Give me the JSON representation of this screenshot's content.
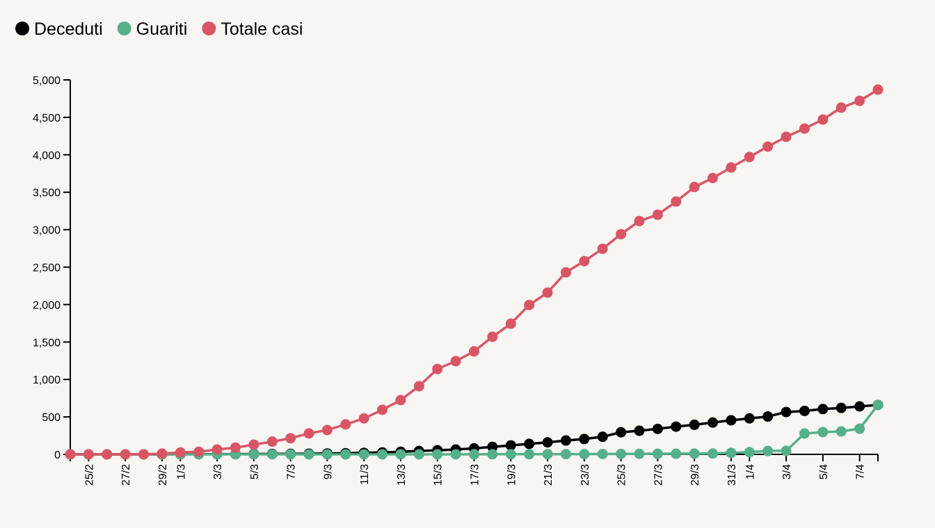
{
  "chart_data": {
    "type": "line",
    "title": "",
    "xlabel": "",
    "ylabel": "",
    "ylim": [
      0,
      5000
    ],
    "y_ticks": [
      0,
      500,
      1000,
      1500,
      2000,
      2500,
      3000,
      3500,
      4000,
      4500,
      5000
    ],
    "y_tick_labels": [
      "0",
      "500",
      "1,000",
      "1,500",
      "2,000",
      "2,500",
      "3,000",
      "3,500",
      "4,000",
      "4,500",
      "5,000"
    ],
    "legend_placement": "top-left",
    "x": [
      "24/2",
      "25/2",
      "26/2",
      "27/2",
      "28/2",
      "29/2",
      "1/3",
      "2/3",
      "3/3",
      "4/3",
      "5/3",
      "6/3",
      "7/3",
      "8/3",
      "9/3",
      "10/3",
      "11/3",
      "12/3",
      "13/3",
      "14/3",
      "15/3",
      "16/3",
      "17/3",
      "18/3",
      "19/3",
      "20/3",
      "21/3",
      "22/3",
      "23/3",
      "24/3",
      "25/3",
      "26/3",
      "27/3",
      "28/3",
      "29/3",
      "30/3",
      "31/3",
      "1/4",
      "2/4",
      "3/4",
      "4/4",
      "5/4",
      "6/4",
      "7/4",
      "8/4"
    ],
    "x_tick_labels": [
      "25/2",
      "27/2",
      "29/2",
      "1/3",
      "3/3",
      "5/3",
      "7/3",
      "9/3",
      "11/3",
      "13/3",
      "15/3",
      "17/3",
      "19/3",
      "21/3",
      "23/3",
      "25/3",
      "27/3",
      "29/3",
      "31/3",
      "1/4",
      "3/4",
      "5/4",
      "7/4"
    ],
    "series": [
      {
        "name": "Deceduti",
        "color": "#000000",
        "values": [
          0,
          0,
          0,
          0,
          0,
          0,
          1,
          2,
          3,
          4,
          5,
          6,
          7,
          9,
          12,
          15,
          20,
          25,
          35,
          45,
          55,
          65,
          80,
          100,
          120,
          140,
          160,
          185,
          205,
          235,
          295,
          315,
          340,
          370,
          395,
          425,
          455,
          480,
          505,
          565,
          580,
          605,
          620,
          640,
          660
        ]
      },
      {
        "name": "Guariti",
        "color": "#55b08a",
        "values": [
          0,
          0,
          0,
          0,
          0,
          0,
          0,
          0,
          0,
          0,
          0,
          0,
          0,
          0,
          0,
          0,
          0,
          0,
          0,
          0,
          0,
          0,
          1,
          1,
          2,
          2,
          3,
          3,
          4,
          5,
          6,
          7,
          8,
          9,
          10,
          12,
          20,
          30,
          45,
          48,
          278,
          297,
          306,
          343,
          659
        ]
      },
      {
        "name": "Totale casi",
        "color": "#d95566",
        "values": [
          0,
          0,
          0,
          0,
          0,
          10,
          25,
          35,
          65,
          90,
          130,
          170,
          215,
          280,
          325,
          400,
          480,
          595,
          725,
          910,
          1140,
          1245,
          1375,
          1570,
          1745,
          1995,
          2160,
          2430,
          2580,
          2745,
          2940,
          3115,
          3200,
          3375,
          3570,
          3690,
          3830,
          3970,
          4110,
          4240,
          4350,
          4470,
          4630,
          4720,
          4870
        ]
      }
    ]
  }
}
